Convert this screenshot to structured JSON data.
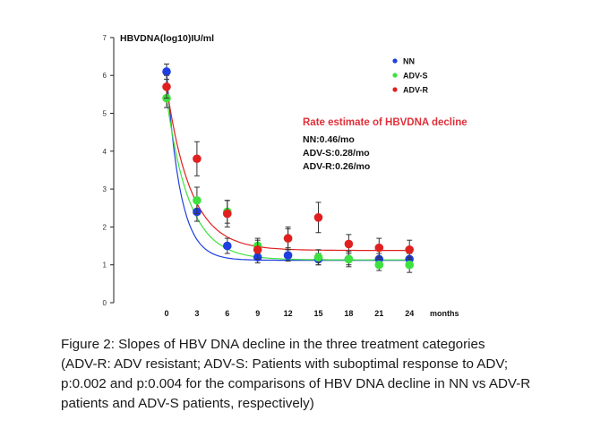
{
  "chart_data": {
    "type": "scatter",
    "ylabel": "HBVDNA(log10)IU/ml",
    "xlabel": "months",
    "x": [
      0,
      3,
      6,
      9,
      12,
      15,
      18,
      21,
      24
    ],
    "xticks": [
      "0",
      "3",
      "6",
      "9",
      "12",
      "15",
      "18",
      "21",
      "24"
    ],
    "ylim": [
      0,
      7
    ],
    "yticks": [
      "0",
      "1",
      "2",
      "3",
      "4",
      "5",
      "6",
      "7"
    ],
    "grid": false,
    "legend_position": "top-right",
    "series": [
      {
        "name": "NN",
        "color": "#1f3fe0",
        "values": [
          6.1,
          2.4,
          1.5,
          1.2,
          1.25,
          1.15,
          1.15,
          1.15,
          1.15
        ],
        "err": [
          0.2,
          0.25,
          0.2,
          0.15,
          0.15,
          0.15,
          0.15,
          0.15,
          0.15
        ]
      },
      {
        "name": "ADV-S",
        "color": "#3ee23e",
        "values": [
          5.4,
          2.7,
          2.4,
          1.5,
          1.7,
          1.2,
          1.15,
          1.0,
          1.0
        ],
        "err": [
          0.25,
          0.35,
          0.3,
          0.2,
          0.25,
          0.2,
          0.2,
          0.15,
          0.2
        ]
      },
      {
        "name": "ADV-R",
        "color": "#e02020",
        "values": [
          5.7,
          3.8,
          2.35,
          1.4,
          1.7,
          2.25,
          1.55,
          1.45,
          1.4
        ],
        "err": [
          0.3,
          0.45,
          0.35,
          0.25,
          0.3,
          0.4,
          0.25,
          0.25,
          0.25
        ]
      }
    ],
    "annotation": {
      "title": "Rate estimate of HBVDNA decline",
      "lines": [
        "NN:0.46/mo",
        "ADV-S:0.28/mo",
        "ADV-R:0.26/mo"
      ]
    }
  },
  "caption": [
    "Figure 2: Slopes of HBV DNA decline in the three treatment categories",
    "(ADV-R: ADV resistant; ADV-S: Patients with suboptimal response to ADV;",
    "p:0.002 and p:0.004 for the comparisons of HBV DNA decline in NN vs ADV-R",
    "patients and ADV-S patients, respectively)"
  ]
}
